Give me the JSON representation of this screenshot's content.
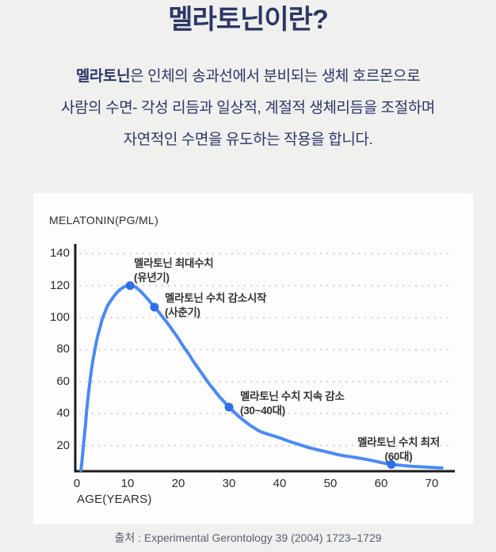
{
  "header": {
    "title_bold": "멜라토닌",
    "title_rest": "이란?"
  },
  "intro": {
    "line1_bold": "멜라토닌",
    "line1_rest": "은 인체의 송과선에서 분비되는 생체 호르몬으로",
    "line2": "사람의 수면- 각성 리듬과 일상적, 계절적 생체리듬을 조절하며",
    "line3": "자연적인 수면을 유도하는 작용을 합니다."
  },
  "chart_data": {
    "type": "line",
    "ylabel": "MELATONIN(PG/ML)",
    "xlabel": "AGE(YEARS)",
    "x_ticks": [
      0,
      10,
      20,
      30,
      40,
      50,
      60,
      70
    ],
    "y_ticks": [
      20,
      40,
      60,
      80,
      100,
      120,
      140
    ],
    "xlim": [
      0,
      72
    ],
    "ylim": [
      0,
      145
    ],
    "grid": "horizontal-dashed",
    "legend": "none",
    "line_color": "#4a8af3",
    "marker_color": "#2f6fe3",
    "axis_color": "#1c1c1c",
    "grid_color": "#c7c7c7",
    "points": [
      [
        0.8,
        4.5
      ],
      [
        1,
        10
      ],
      [
        1.3,
        20
      ],
      [
        1.7,
        33
      ],
      [
        2,
        44
      ],
      [
        2.5,
        58
      ],
      [
        3,
        70
      ],
      [
        3.5,
        79
      ],
      [
        4,
        87
      ],
      [
        4.5,
        93
      ],
      [
        5,
        99
      ],
      [
        5.5,
        103
      ],
      [
        6,
        107
      ],
      [
        7,
        112
      ],
      [
        8,
        116
      ],
      [
        9,
        118.6
      ],
      [
        10,
        120
      ],
      [
        10.5,
        120.2
      ],
      [
        11,
        120
      ],
      [
        12,
        118
      ],
      [
        13,
        115
      ],
      [
        14,
        111.5
      ],
      [
        15.3,
        106.5
      ],
      [
        16,
        104
      ],
      [
        17,
        100
      ],
      [
        18,
        96
      ],
      [
        19,
        91.5
      ],
      [
        20,
        87
      ],
      [
        21,
        82
      ],
      [
        22,
        77.5
      ],
      [
        23,
        72.5
      ],
      [
        24,
        68
      ],
      [
        25,
        63.5
      ],
      [
        26,
        59
      ],
      [
        27,
        55
      ],
      [
        28,
        51
      ],
      [
        29,
        47.5
      ],
      [
        30,
        44
      ],
      [
        31,
        41
      ],
      [
        32,
        38
      ],
      [
        33,
        35.5
      ],
      [
        34,
        33
      ],
      [
        35,
        31
      ],
      [
        36,
        29
      ],
      [
        37,
        27.8
      ],
      [
        38,
        26.8
      ],
      [
        40,
        24.8
      ],
      [
        42,
        22.5
      ],
      [
        44,
        20.5
      ],
      [
        46,
        18.5
      ],
      [
        48,
        17
      ],
      [
        50,
        15.5
      ],
      [
        52,
        14
      ],
      [
        54,
        13
      ],
      [
        56,
        12
      ],
      [
        58,
        10.8
      ],
      [
        60,
        9.4
      ],
      [
        62,
        8.2
      ],
      [
        64,
        7.6
      ],
      [
        66,
        7.1
      ],
      [
        68,
        6.7
      ],
      [
        70,
        6.3
      ],
      [
        72,
        6
      ]
    ],
    "markers": [
      {
        "x": 10.5,
        "y": 120,
        "label": "멜라토닌 최대수치",
        "sublabel": "(유년기)"
      },
      {
        "x": 15.3,
        "y": 106.5,
        "label": "멜라토닌 수치 감소시작",
        "sublabel": "(사춘기)"
      },
      {
        "x": 30,
        "y": 44,
        "label": "멜라토닌 수치 지속 감소",
        "sublabel": "(30~40대)"
      },
      {
        "x": 62,
        "y": 8.2,
        "label": "멜라토닌 수치 최저",
        "sublabel": "(60대)"
      }
    ]
  },
  "footer": {
    "source": "출처 : Experimental Gerontology 39 (2004) 1723–1729"
  }
}
